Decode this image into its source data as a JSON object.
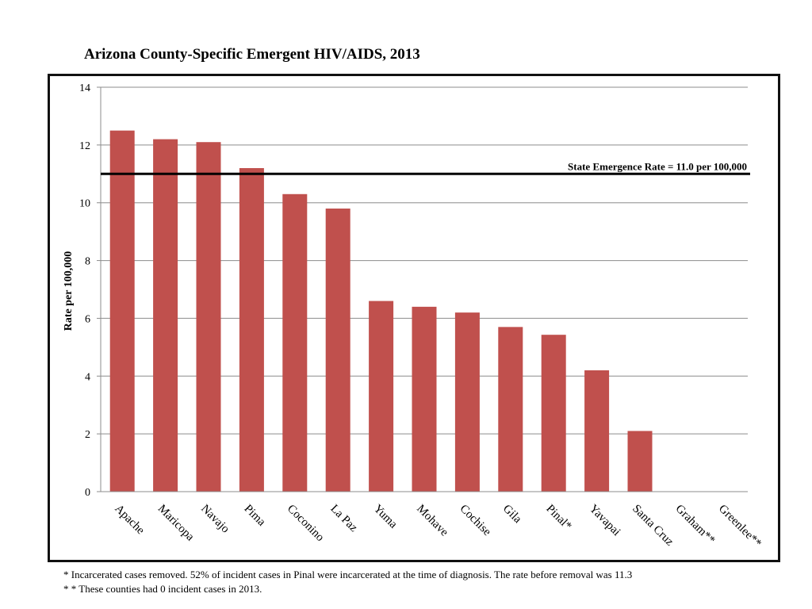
{
  "chart_data": {
    "type": "bar",
    "title": "Arizona County-Specific Emergent HIV/AIDS, 2013",
    "xlabel": "",
    "ylabel": "Rate per 100,000",
    "ylim": [
      0,
      14
    ],
    "yticks": [
      0,
      2,
      4,
      6,
      8,
      10,
      12,
      14
    ],
    "grid": true,
    "bar_color": "#c0504d",
    "categories": [
      "Apache",
      "Maricopa",
      "Navajo",
      "Pima",
      "Coconino",
      "La Paz",
      "Yuma",
      "Mohave",
      "Cochise",
      "Gila",
      "Pinal*",
      "Yavapai",
      "Santa Cruz",
      "Graham**",
      "Greenlee**"
    ],
    "values": [
      12.5,
      12.2,
      12.1,
      11.2,
      10.3,
      9.8,
      6.6,
      6.4,
      6.2,
      5.7,
      5.43,
      4.2,
      2.1,
      0,
      0
    ],
    "reference_line": {
      "value": 11.0,
      "label": "State Emergence Rate = 11.0 per 100,000",
      "color": "#000000"
    }
  },
  "footnotes": {
    "note1": "*  Incarcerated cases removed.   52% of incident cases in Pinal were incarcerated at the time of diagnosis.  The rate before removal was 11.3",
    "note2": "* * These counties had 0 incident cases in 2013."
  }
}
